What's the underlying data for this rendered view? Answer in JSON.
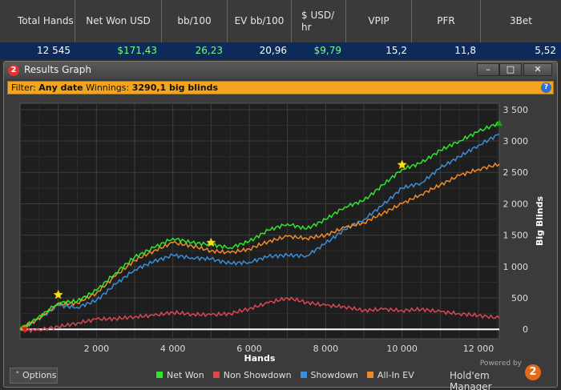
{
  "stats": {
    "headers": [
      "Total Hands",
      "Net Won USD",
      "bb/100",
      "EV bb/100",
      "$ USD/ hr",
      "VPIP",
      "PFR",
      "3Bet"
    ],
    "values": [
      "12 545",
      "$171,43",
      "26,23",
      "20,96",
      "$9,79",
      "15,2",
      "11,8",
      "5,52"
    ]
  },
  "window": {
    "title": "Results Graph",
    "title_icon": "2",
    "min_label": "–",
    "max_label": "□",
    "close_label": "✕"
  },
  "filter": {
    "label": "Filter:",
    "filter_value": "Any date",
    "winnings_label": "Winnings:",
    "winnings_value": "3290,1 big blinds",
    "help_label": "?"
  },
  "options_label": "˄ Options",
  "brand": {
    "powered": "Powered by",
    "name": "Hold'em Manager",
    "logo": "2"
  },
  "colors": {
    "net_won": "#2fe62f",
    "non_showdown": "#d9474f",
    "showdown": "#3a8ed8",
    "all_in_ev": "#ee8a2a",
    "filter_bar": "#f3a51f",
    "stats_row": "#0c2a5c"
  },
  "chart_data": {
    "type": "line",
    "xlabel": "Hands",
    "ylabel": "Big Blinds",
    "xlim": [
      0,
      12545
    ],
    "ylim": [
      -150,
      3600
    ],
    "x_ticks": [
      2000,
      4000,
      6000,
      8000,
      10000,
      12000
    ],
    "x_tick_labels": [
      "2 000",
      "4 000",
      "6 000",
      "8 000",
      "10 000",
      "12 000"
    ],
    "y_ticks": [
      0,
      500,
      1000,
      1500,
      2000,
      2500,
      3000,
      3500
    ],
    "y_tick_labels": [
      "0",
      "500",
      "1 000",
      "1 500",
      "2 000",
      "2 500",
      "3 000",
      "3 500"
    ],
    "grid": true,
    "legend_position": "bottom",
    "series": [
      {
        "name": "Net Won",
        "color": "#2fe62f",
        "x": [
          0,
          400,
          1000,
          1500,
          2000,
          2500,
          3000,
          3500,
          4000,
          4500,
          5000,
          5500,
          6000,
          6500,
          7000,
          7500,
          8000,
          8500,
          9000,
          9500,
          10000,
          10500,
          11000,
          11500,
          12000,
          12545
        ],
        "y": [
          0,
          150,
          420,
          450,
          620,
          900,
          1150,
          1300,
          1450,
          1380,
          1350,
          1300,
          1400,
          1580,
          1680,
          1600,
          1750,
          1950,
          2050,
          2300,
          2550,
          2650,
          2850,
          3000,
          3150,
          3290
        ]
      },
      {
        "name": "Non Showdown",
        "color": "#d9474f",
        "x": [
          0,
          400,
          1000,
          1500,
          2000,
          2500,
          3000,
          3500,
          4000,
          4500,
          5000,
          5500,
          6000,
          6500,
          7000,
          7500,
          8000,
          8500,
          9000,
          9500,
          10000,
          10500,
          11000,
          11500,
          12000,
          12545
        ],
        "y": [
          0,
          -20,
          40,
          100,
          160,
          170,
          200,
          220,
          270,
          240,
          230,
          250,
          330,
          420,
          500,
          430,
          380,
          360,
          300,
          320,
          300,
          320,
          280,
          250,
          220,
          180
        ]
      },
      {
        "name": "Showdown",
        "color": "#3a8ed8",
        "x": [
          0,
          400,
          1000,
          1500,
          2000,
          2500,
          3000,
          3500,
          4000,
          4500,
          5000,
          5500,
          6000,
          6500,
          7000,
          7500,
          8000,
          8500,
          9000,
          9500,
          10000,
          10500,
          11000,
          11500,
          12000,
          12545
        ],
        "y": [
          0,
          130,
          380,
          350,
          460,
          720,
          950,
          1080,
          1180,
          1140,
          1120,
          1050,
          1070,
          1160,
          1180,
          1170,
          1370,
          1590,
          1750,
          1980,
          2250,
          2330,
          2570,
          2750,
          2930,
          3110
        ]
      },
      {
        "name": "All-In EV",
        "color": "#ee8a2a",
        "x": [
          0,
          400,
          1000,
          1500,
          2000,
          2500,
          3000,
          3500,
          4000,
          4500,
          5000,
          5500,
          6000,
          6500,
          7000,
          7500,
          8000,
          8500,
          9000,
          9500,
          10000,
          10500,
          11000,
          11500,
          12000,
          12545
        ],
        "y": [
          0,
          140,
          400,
          420,
          580,
          850,
          1100,
          1250,
          1380,
          1330,
          1250,
          1220,
          1280,
          1400,
          1480,
          1450,
          1500,
          1620,
          1700,
          1850,
          2000,
          2150,
          2300,
          2450,
          2550,
          2630
        ]
      }
    ],
    "annotations": [
      {
        "type": "star",
        "x": 1000,
        "y": 550
      },
      {
        "type": "star",
        "x": 5000,
        "y": 1380
      },
      {
        "type": "star",
        "x": 10000,
        "y": 2620
      }
    ]
  }
}
